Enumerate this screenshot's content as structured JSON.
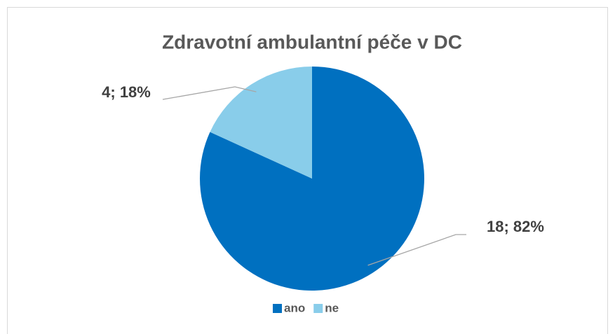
{
  "chart_data": {
    "type": "pie",
    "title": "Zdravotní ambulantní péče v DC",
    "categories": [
      "ano",
      "ne"
    ],
    "values": [
      18,
      4
    ],
    "value_labels": [
      "18; 82%",
      "4; 18%"
    ],
    "colors": [
      "#0070c0",
      "#89cdea"
    ],
    "legend": "bottom"
  }
}
